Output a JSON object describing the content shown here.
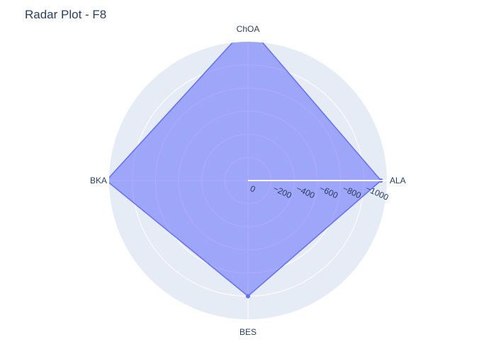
{
  "chart_data": {
    "type": "radar",
    "title": "Radar Plot - F8",
    "categories": [
      "ALA",
      "ChOA",
      "BKA",
      "BES"
    ],
    "series": [
      {
        "name": "F8",
        "values": [
          -1149,
          -1340,
          -1224,
          -1000
        ],
        "color": "#636efa"
      }
    ],
    "radial_range": [
      0,
      -1200
    ],
    "radial_ticks": [
      0,
      -200,
      -400,
      -600,
      -800,
      -1000
    ],
    "radial_tick_labels": [
      "0",
      "−200",
      "−400",
      "−600",
      "−800",
      "−1000"
    ],
    "grid": true
  }
}
